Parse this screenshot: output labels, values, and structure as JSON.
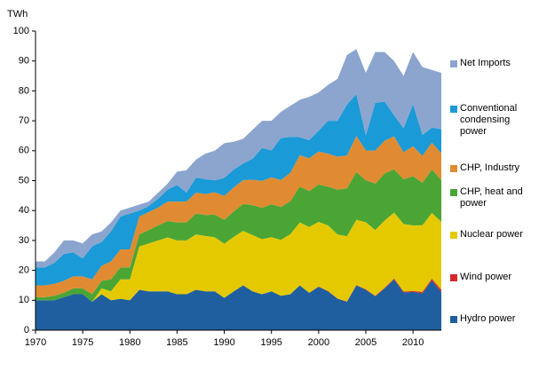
{
  "chart_data": {
    "type": "stacked-area",
    "y_label": "TWh",
    "x": [
      1970,
      1971,
      1972,
      1973,
      1974,
      1975,
      1976,
      1977,
      1978,
      1979,
      1980,
      1981,
      1982,
      1983,
      1984,
      1985,
      1986,
      1987,
      1988,
      1989,
      1990,
      1991,
      1992,
      1993,
      1994,
      1995,
      1996,
      1997,
      1998,
      1999,
      2000,
      2001,
      2002,
      2003,
      2004,
      2005,
      2006,
      2007,
      2008,
      2009,
      2010,
      2011,
      2012,
      2013
    ],
    "xlim": [
      1970,
      2013
    ],
    "xticks": [
      1970,
      1975,
      1980,
      1985,
      1990,
      1995,
      2000,
      2005,
      2010
    ],
    "ylim": [
      0,
      100
    ],
    "yticks": [
      0,
      10,
      20,
      30,
      40,
      50,
      60,
      70,
      80,
      90,
      100
    ],
    "grid": false,
    "series": [
      {
        "name": "Hydro power",
        "color": "#1f5f9f",
        "values": [
          10,
          10,
          10,
          11,
          12,
          12,
          9.5,
          12,
          10,
          10.5,
          10,
          13.5,
          13,
          13,
          13,
          12,
          12,
          13.5,
          13,
          13,
          10.8,
          13,
          15,
          13,
          12,
          13,
          11.5,
          12,
          15,
          12.5,
          14.5,
          13,
          10.5,
          9.5,
          15,
          13.5,
          11.3,
          14,
          17,
          12.6,
          12.8,
          12.3,
          16.7,
          12.7
        ]
      },
      {
        "name": "Wind power",
        "color": "#d6282b",
        "values": [
          0,
          0,
          0,
          0,
          0,
          0,
          0,
          0,
          0,
          0,
          0,
          0,
          0,
          0,
          0,
          0,
          0,
          0,
          0,
          0,
          0,
          0,
          0,
          0,
          0,
          0,
          0,
          0,
          0,
          0,
          0.1,
          0.1,
          0.1,
          0.1,
          0.1,
          0.2,
          0.2,
          0.2,
          0.3,
          0.3,
          0.3,
          0.5,
          0.5,
          0.8
        ]
      },
      {
        "name": "Nuclear power",
        "color": "#e5c900",
        "values": [
          0,
          0,
          0,
          0,
          0,
          0,
          0,
          2,
          3,
          6.5,
          7,
          14.5,
          16,
          17,
          18,
          18,
          18,
          18.5,
          18.5,
          18.1,
          18.1,
          18.2,
          18.2,
          18.8,
          18.4,
          18.1,
          18.7,
          20.1,
          21,
          22,
          21.6,
          21.9,
          21.4,
          21.8,
          21.8,
          22.4,
          22,
          22.5,
          22,
          22.6,
          21.9,
          22.3,
          22,
          22.7
        ]
      },
      {
        "name": "CHP, heat and power",
        "color": "#4aa535",
        "values": [
          1,
          1,
          1.5,
          1.5,
          2,
          2,
          2.5,
          2.5,
          4,
          4,
          4,
          4,
          4.5,
          5,
          5.5,
          6,
          6,
          7,
          7,
          7.5,
          8,
          8.5,
          9,
          10,
          10.5,
          11,
          11,
          11,
          12,
          12,
          12.5,
          13,
          15,
          16,
          16,
          14,
          15.5,
          15.7,
          14.5,
          15,
          16.5,
          14.2,
          14.5,
          14
        ]
      },
      {
        "name": "CHP, Industry",
        "color": "#e08b31",
        "values": [
          4,
          4,
          4,
          4,
          4,
          4,
          5,
          5,
          6,
          6,
          6,
          6,
          6,
          6,
          6.5,
          7,
          7,
          7,
          7,
          7.5,
          8,
          8,
          8,
          8.5,
          9,
          9,
          9,
          9.5,
          10.5,
          11,
          11,
          11,
          11,
          11,
          12,
          10,
          11,
          11,
          11,
          9,
          10,
          9,
          9,
          9
        ]
      },
      {
        "name": "Conventional condensing power",
        "color": "#1a9ad6",
        "values": [
          6,
          6,
          7,
          9,
          8,
          6,
          11,
          8,
          10,
          11,
          12,
          2,
          2,
          3,
          4,
          5.5,
          3,
          5,
          5,
          4,
          6,
          6,
          5.5,
          7,
          11,
          9,
          14,
          12,
          6,
          6,
          7,
          11,
          12,
          17,
          14,
          5,
          16,
          13,
          7,
          8,
          14,
          7,
          5,
          8
        ]
      },
      {
        "name": "Net Imports",
        "color": "#8ba5cf",
        "values": [
          2,
          2,
          3.5,
          4.5,
          4,
          5,
          4,
          3.5,
          3,
          2,
          2,
          2,
          1.5,
          2,
          2,
          4.5,
          7.5,
          6,
          8.5,
          9.9,
          11.6,
          9.3,
          8.3,
          9.7,
          9.1,
          9.9,
          8.8,
          10.4,
          12.5,
          14.5,
          12.8,
          12,
          14,
          16.6,
          15.1,
          20.9,
          17,
          16.6,
          18.2,
          17.5,
          17.5,
          22.7,
          19.3,
          18.8
        ]
      }
    ]
  }
}
